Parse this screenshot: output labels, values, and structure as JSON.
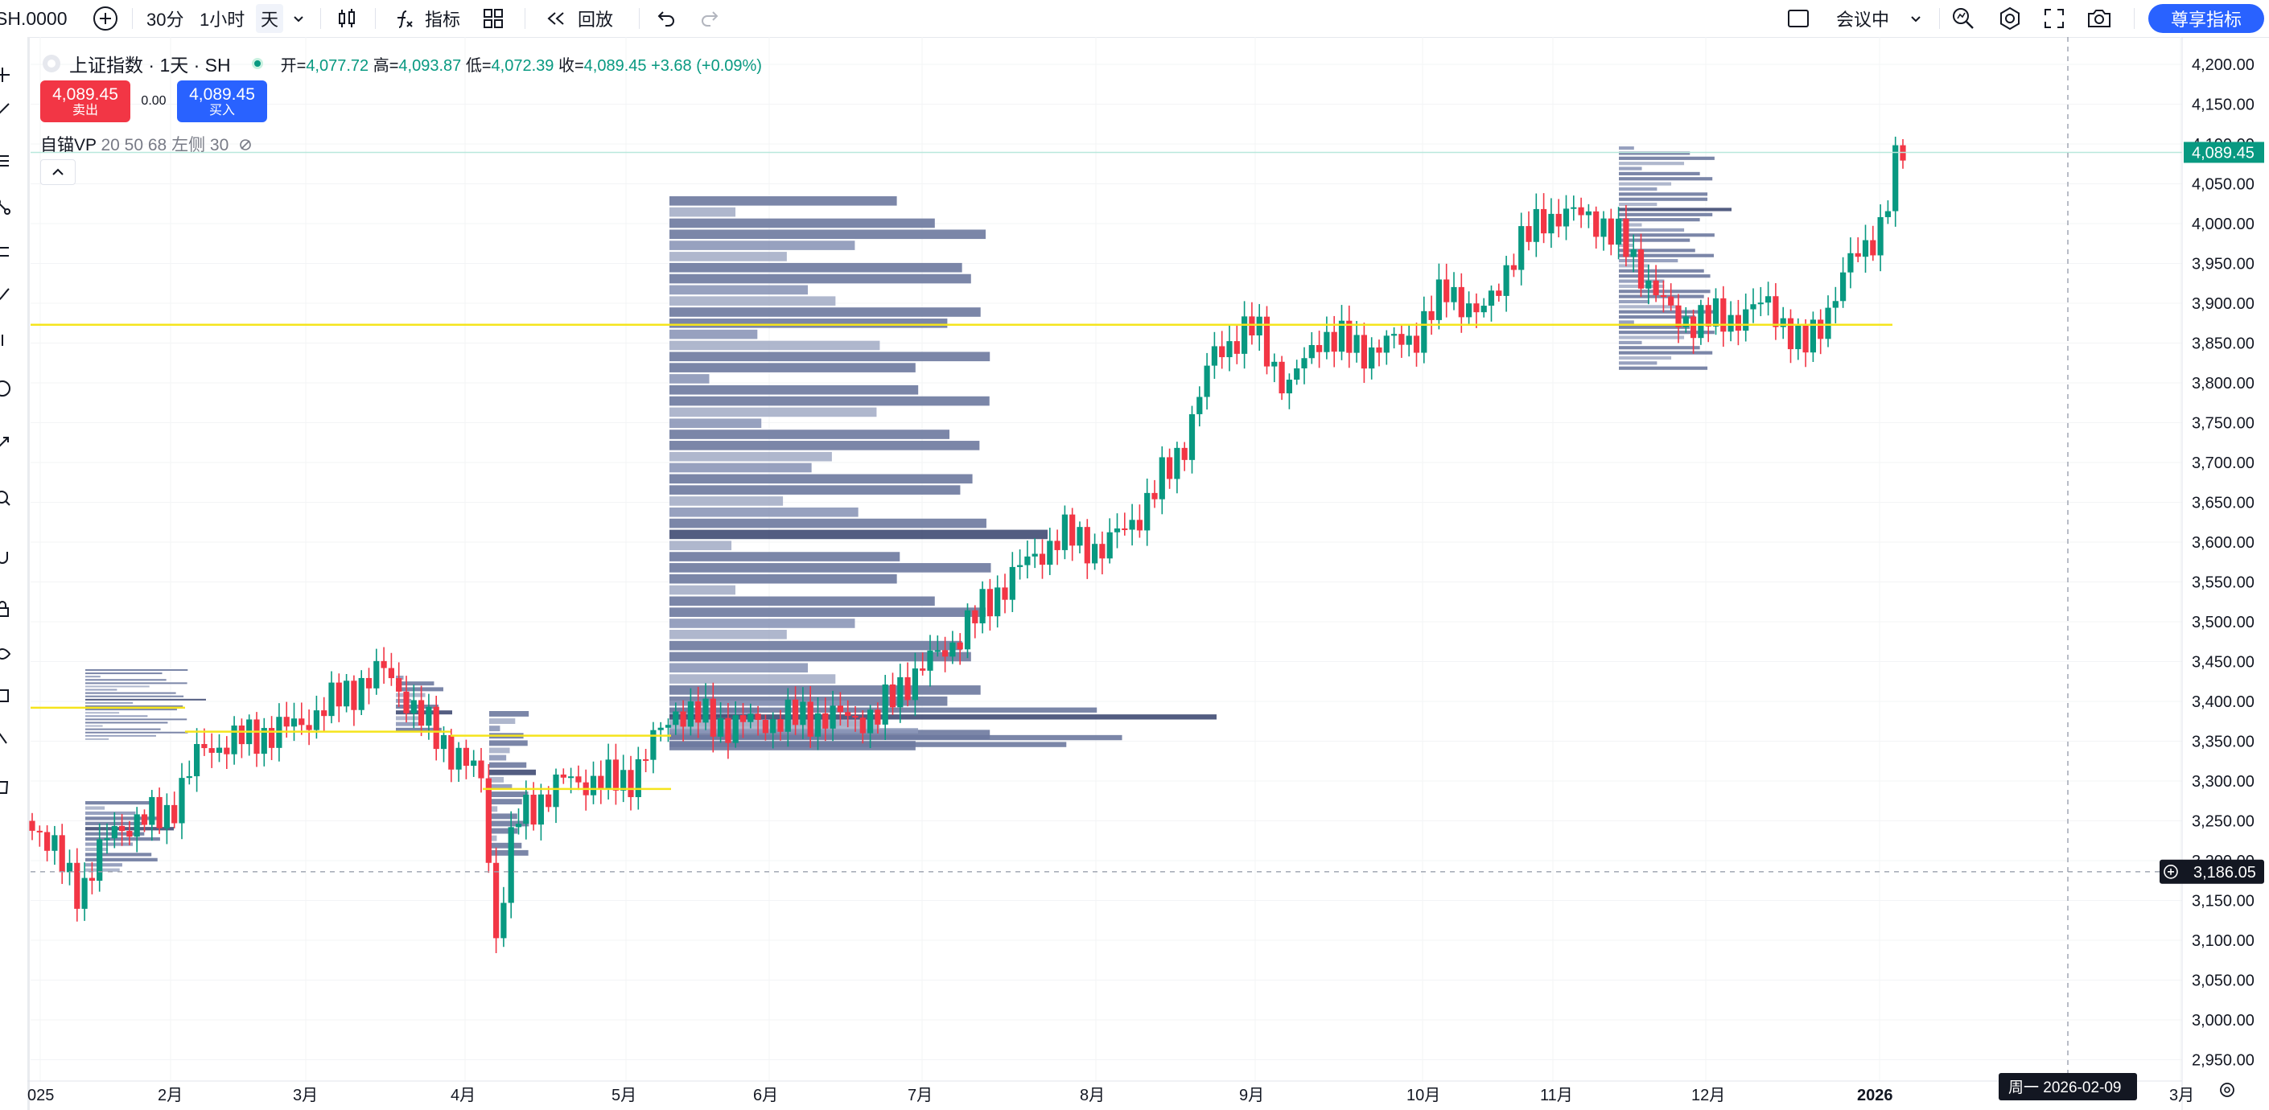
{
  "toolbar": {
    "symbol": "SH.0000",
    "intervals": [
      "30分",
      "1小时",
      "天"
    ],
    "indicators_label": "指标",
    "replay_label": "回放",
    "session_label": "会议中",
    "premium_label": "尊享指标"
  },
  "legend": {
    "title": "上证指数 · 1天 · SH",
    "open_label": "开",
    "open": "4,077.72",
    "high_label": "高",
    "high": "4,093.87",
    "low_label": "低",
    "low": "4,072.39",
    "close_label": "收",
    "close": "4,089.45",
    "change": "+3.68 (+0.09%)"
  },
  "trade": {
    "sell_price": "4,089.45",
    "sell_label": "卖出",
    "spread": "0.00",
    "buy_price": "4,089.45",
    "buy_label": "买入"
  },
  "indicator": {
    "name": "自锚VP",
    "params": "20 50 68 左侧 30"
  },
  "axis": {
    "price_ticks": [
      "4,200.00",
      "4,150.00",
      "4,100.00",
      "4,050.00",
      "4,000.00",
      "3,950.00",
      "3,900.00",
      "3,850.00",
      "3,800.00",
      "3,750.00",
      "3,700.00",
      "3,650.00",
      "3,600.00",
      "3,550.00",
      "3,500.00",
      "3,450.00",
      "3,400.00",
      "3,350.00",
      "3,300.00",
      "3,250.00",
      "3,200.00",
      "3,150.00",
      "3,100.00",
      "3,050.00",
      "3,000.00",
      "2,950.00"
    ],
    "time_labels": [
      "025",
      "2月",
      "3月",
      "4月",
      "5月",
      "6月",
      "7月",
      "8月",
      "9月",
      "10月",
      "11月",
      "12月",
      "2026",
      "3月"
    ],
    "last_price": "4,089.45",
    "crosshair_price": "3,186.05",
    "crosshair_date": "周一 2026-02-09"
  },
  "colors": {
    "up": "#089981",
    "down": "#f23645",
    "accent": "#2962ff",
    "poc": "#f5e41c",
    "vp_bar": "#5d6a96"
  }
}
